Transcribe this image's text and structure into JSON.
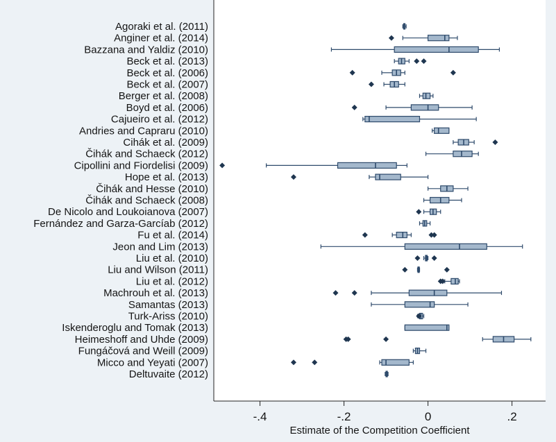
{
  "chart_data": {
    "type": "boxplot",
    "orientation": "horizontal",
    "xlabel": "Estimate of the Competition Coefficient",
    "ylabel": "",
    "xlim": [
      -0.51,
      0.28
    ],
    "x_ticks": [
      -0.4,
      -0.2,
      0,
      0.2
    ],
    "x_tick_labels": [
      "-.4",
      "-.2",
      "0",
      ".2"
    ],
    "grid": false,
    "legend": "none",
    "colors": {
      "box": "#a4b8cc",
      "line": "#2e4a6b",
      "marker": "#1f3650",
      "background": "#edf2f6",
      "plot_background": "#ffffff"
    },
    "categories": [
      {
        "label": "Agoraki et al. (2011)",
        "whisker_low": -0.06,
        "q1": -0.058,
        "median": -0.057,
        "q3": -0.055,
        "whisker_high": -0.052,
        "outliers": []
      },
      {
        "label": "Anginer et al. (2014)",
        "whisker_low": -0.06,
        "q1": 0.0,
        "median": 0.04,
        "q3": 0.05,
        "whisker_high": 0.07,
        "outliers": [
          -0.087
        ]
      },
      {
        "label": "Bazzana and Yaldiz (2010)",
        "whisker_low": -0.23,
        "q1": -0.08,
        "median": 0.05,
        "q3": 0.12,
        "whisker_high": 0.17,
        "outliers": []
      },
      {
        "label": "Beck et al. (2013)",
        "whisker_low": -0.08,
        "q1": -0.07,
        "median": -0.063,
        "q3": -0.055,
        "whisker_high": -0.045,
        "outliers": [
          -0.027,
          -0.01
        ]
      },
      {
        "label": "Beck et al. (2006)",
        "whisker_low": -0.11,
        "q1": -0.085,
        "median": -0.075,
        "q3": -0.065,
        "whisker_high": -0.055,
        "outliers": [
          -0.18,
          0.06
        ]
      },
      {
        "label": "Beck et al. (2007)",
        "whisker_low": -0.105,
        "q1": -0.09,
        "median": -0.08,
        "q3": -0.07,
        "whisker_high": -0.055,
        "outliers": [
          -0.135
        ]
      },
      {
        "label": "Berger et al. (2008)",
        "whisker_low": -0.02,
        "q1": -0.012,
        "median": -0.005,
        "q3": 0.005,
        "whisker_high": 0.012,
        "outliers": []
      },
      {
        "label": "Boyd et al. (2006)",
        "whisker_low": -0.1,
        "q1": -0.04,
        "median": 0.0,
        "q3": 0.025,
        "whisker_high": 0.105,
        "outliers": [
          -0.175
        ]
      },
      {
        "label": "Cajueiro et al. (2012)",
        "whisker_low": -0.155,
        "q1": -0.15,
        "median": -0.14,
        "q3": -0.02,
        "whisker_high": 0.115,
        "outliers": []
      },
      {
        "label": "Andries and Capraru (2010)",
        "whisker_low": 0.01,
        "q1": 0.015,
        "median": 0.025,
        "q3": 0.05,
        "whisker_high": 0.05,
        "outliers": []
      },
      {
        "label": "Cihák et al. (2009)",
        "whisker_low": 0.06,
        "q1": 0.072,
        "median": 0.085,
        "q3": 0.097,
        "whisker_high": 0.11,
        "outliers": [
          0.16
        ]
      },
      {
        "label": "Čihák and Schaeck (2012)",
        "whisker_low": -0.005,
        "q1": 0.06,
        "median": 0.08,
        "q3": 0.105,
        "whisker_high": 0.12,
        "outliers": []
      },
      {
        "label": "Cipollini and Fiordelisi (2009)",
        "whisker_low": -0.385,
        "q1": -0.215,
        "median": -0.125,
        "q3": -0.075,
        "whisker_high": -0.05,
        "outliers": [
          -0.49
        ]
      },
      {
        "label": "Hope et al. (2013)",
        "whisker_low": -0.14,
        "q1": -0.125,
        "median": -0.115,
        "q3": -0.065,
        "whisker_high": 0.0,
        "outliers": [
          -0.32
        ]
      },
      {
        "label": "Čihák and Hesse (2010)",
        "whisker_low": 0.0,
        "q1": 0.03,
        "median": 0.045,
        "q3": 0.06,
        "whisker_high": 0.095,
        "outliers": []
      },
      {
        "label": "Čihák and Schaeck (2008)",
        "whisker_low": -0.01,
        "q1": 0.005,
        "median": 0.03,
        "q3": 0.05,
        "whisker_high": 0.08,
        "outliers": []
      },
      {
        "label": "De Nicolo and Loukoianova (2007)",
        "whisker_low": -0.01,
        "q1": 0.005,
        "median": 0.012,
        "q3": 0.02,
        "whisker_high": 0.03,
        "outliers": [
          -0.022
        ]
      },
      {
        "label": "Fernández and Garza-Garcíab (2012)",
        "whisker_low": -0.02,
        "q1": -0.012,
        "median": -0.008,
        "q3": -0.003,
        "whisker_high": 0.005,
        "outliers": []
      },
      {
        "label": "Fu et al. (2014)",
        "whisker_low": -0.085,
        "q1": -0.075,
        "median": -0.06,
        "q3": -0.05,
        "whisker_high": -0.04,
        "outliers": [
          -0.15,
          0.008,
          0.015
        ]
      },
      {
        "label": "Jeon and Lim (2013)",
        "whisker_low": -0.255,
        "q1": -0.055,
        "median": 0.075,
        "q3": 0.14,
        "whisker_high": 0.225,
        "outliers": []
      },
      {
        "label": "Liu et al. (2010)",
        "whisker_low": -0.01,
        "q1": -0.006,
        "median": -0.004,
        "q3": -0.002,
        "whisker_high": 0.0,
        "outliers": [
          -0.025,
          0.015
        ]
      },
      {
        "label": "Liu and Wilson (2011)",
        "whisker_low": -0.025,
        "q1": -0.024,
        "median": -0.022,
        "q3": -0.021,
        "whisker_high": -0.02,
        "outliers": [
          -0.055,
          0.045
        ]
      },
      {
        "label": "Liu et al. (2012)",
        "whisker_low": 0.04,
        "q1": 0.055,
        "median": 0.065,
        "q3": 0.072,
        "whisker_high": 0.075,
        "outliers": [
          0.03,
          0.035
        ]
      },
      {
        "label": "Machrouh et al. (2013)",
        "whisker_low": -0.135,
        "q1": -0.045,
        "median": 0.015,
        "q3": 0.045,
        "whisker_high": 0.175,
        "outliers": [
          -0.22,
          -0.175
        ]
      },
      {
        "label": "Samantas (2013)",
        "whisker_low": -0.135,
        "q1": -0.055,
        "median": 0.005,
        "q3": 0.015,
        "whisker_high": 0.095,
        "outliers": []
      },
      {
        "label": "Turk-Ariss (2010)",
        "whisker_low": -0.025,
        "q1": -0.02,
        "median": -0.017,
        "q3": -0.013,
        "whisker_high": -0.01,
        "outliers": [
          -0.022
        ]
      },
      {
        "label": "Iskenderoglu and Tomak (2013)",
        "whisker_low": -0.055,
        "q1": -0.055,
        "median": 0.045,
        "q3": 0.05,
        "whisker_high": 0.05,
        "outliers": []
      },
      {
        "label": "Heimeshoff and Uhde (2009)",
        "whisker_low": 0.13,
        "q1": 0.155,
        "median": 0.18,
        "q3": 0.205,
        "whisker_high": 0.245,
        "outliers": [
          -0.195,
          -0.19,
          -0.1
        ]
      },
      {
        "label": "Fungáčová and Weill (2009)",
        "whisker_low": -0.035,
        "q1": -0.03,
        "median": -0.025,
        "q3": -0.02,
        "whisker_high": -0.005,
        "outliers": []
      },
      {
        "label": "Micco and Yeyati (2007)",
        "whisker_low": -0.115,
        "q1": -0.11,
        "median": -0.1,
        "q3": -0.045,
        "whisker_high": -0.035,
        "outliers": [
          -0.32,
          -0.27
        ]
      },
      {
        "label": "Deltuvaite (2012)",
        "whisker_low": -0.102,
        "q1": -0.1,
        "median": -0.099,
        "q3": -0.097,
        "whisker_high": -0.095,
        "outliers": []
      }
    ]
  }
}
